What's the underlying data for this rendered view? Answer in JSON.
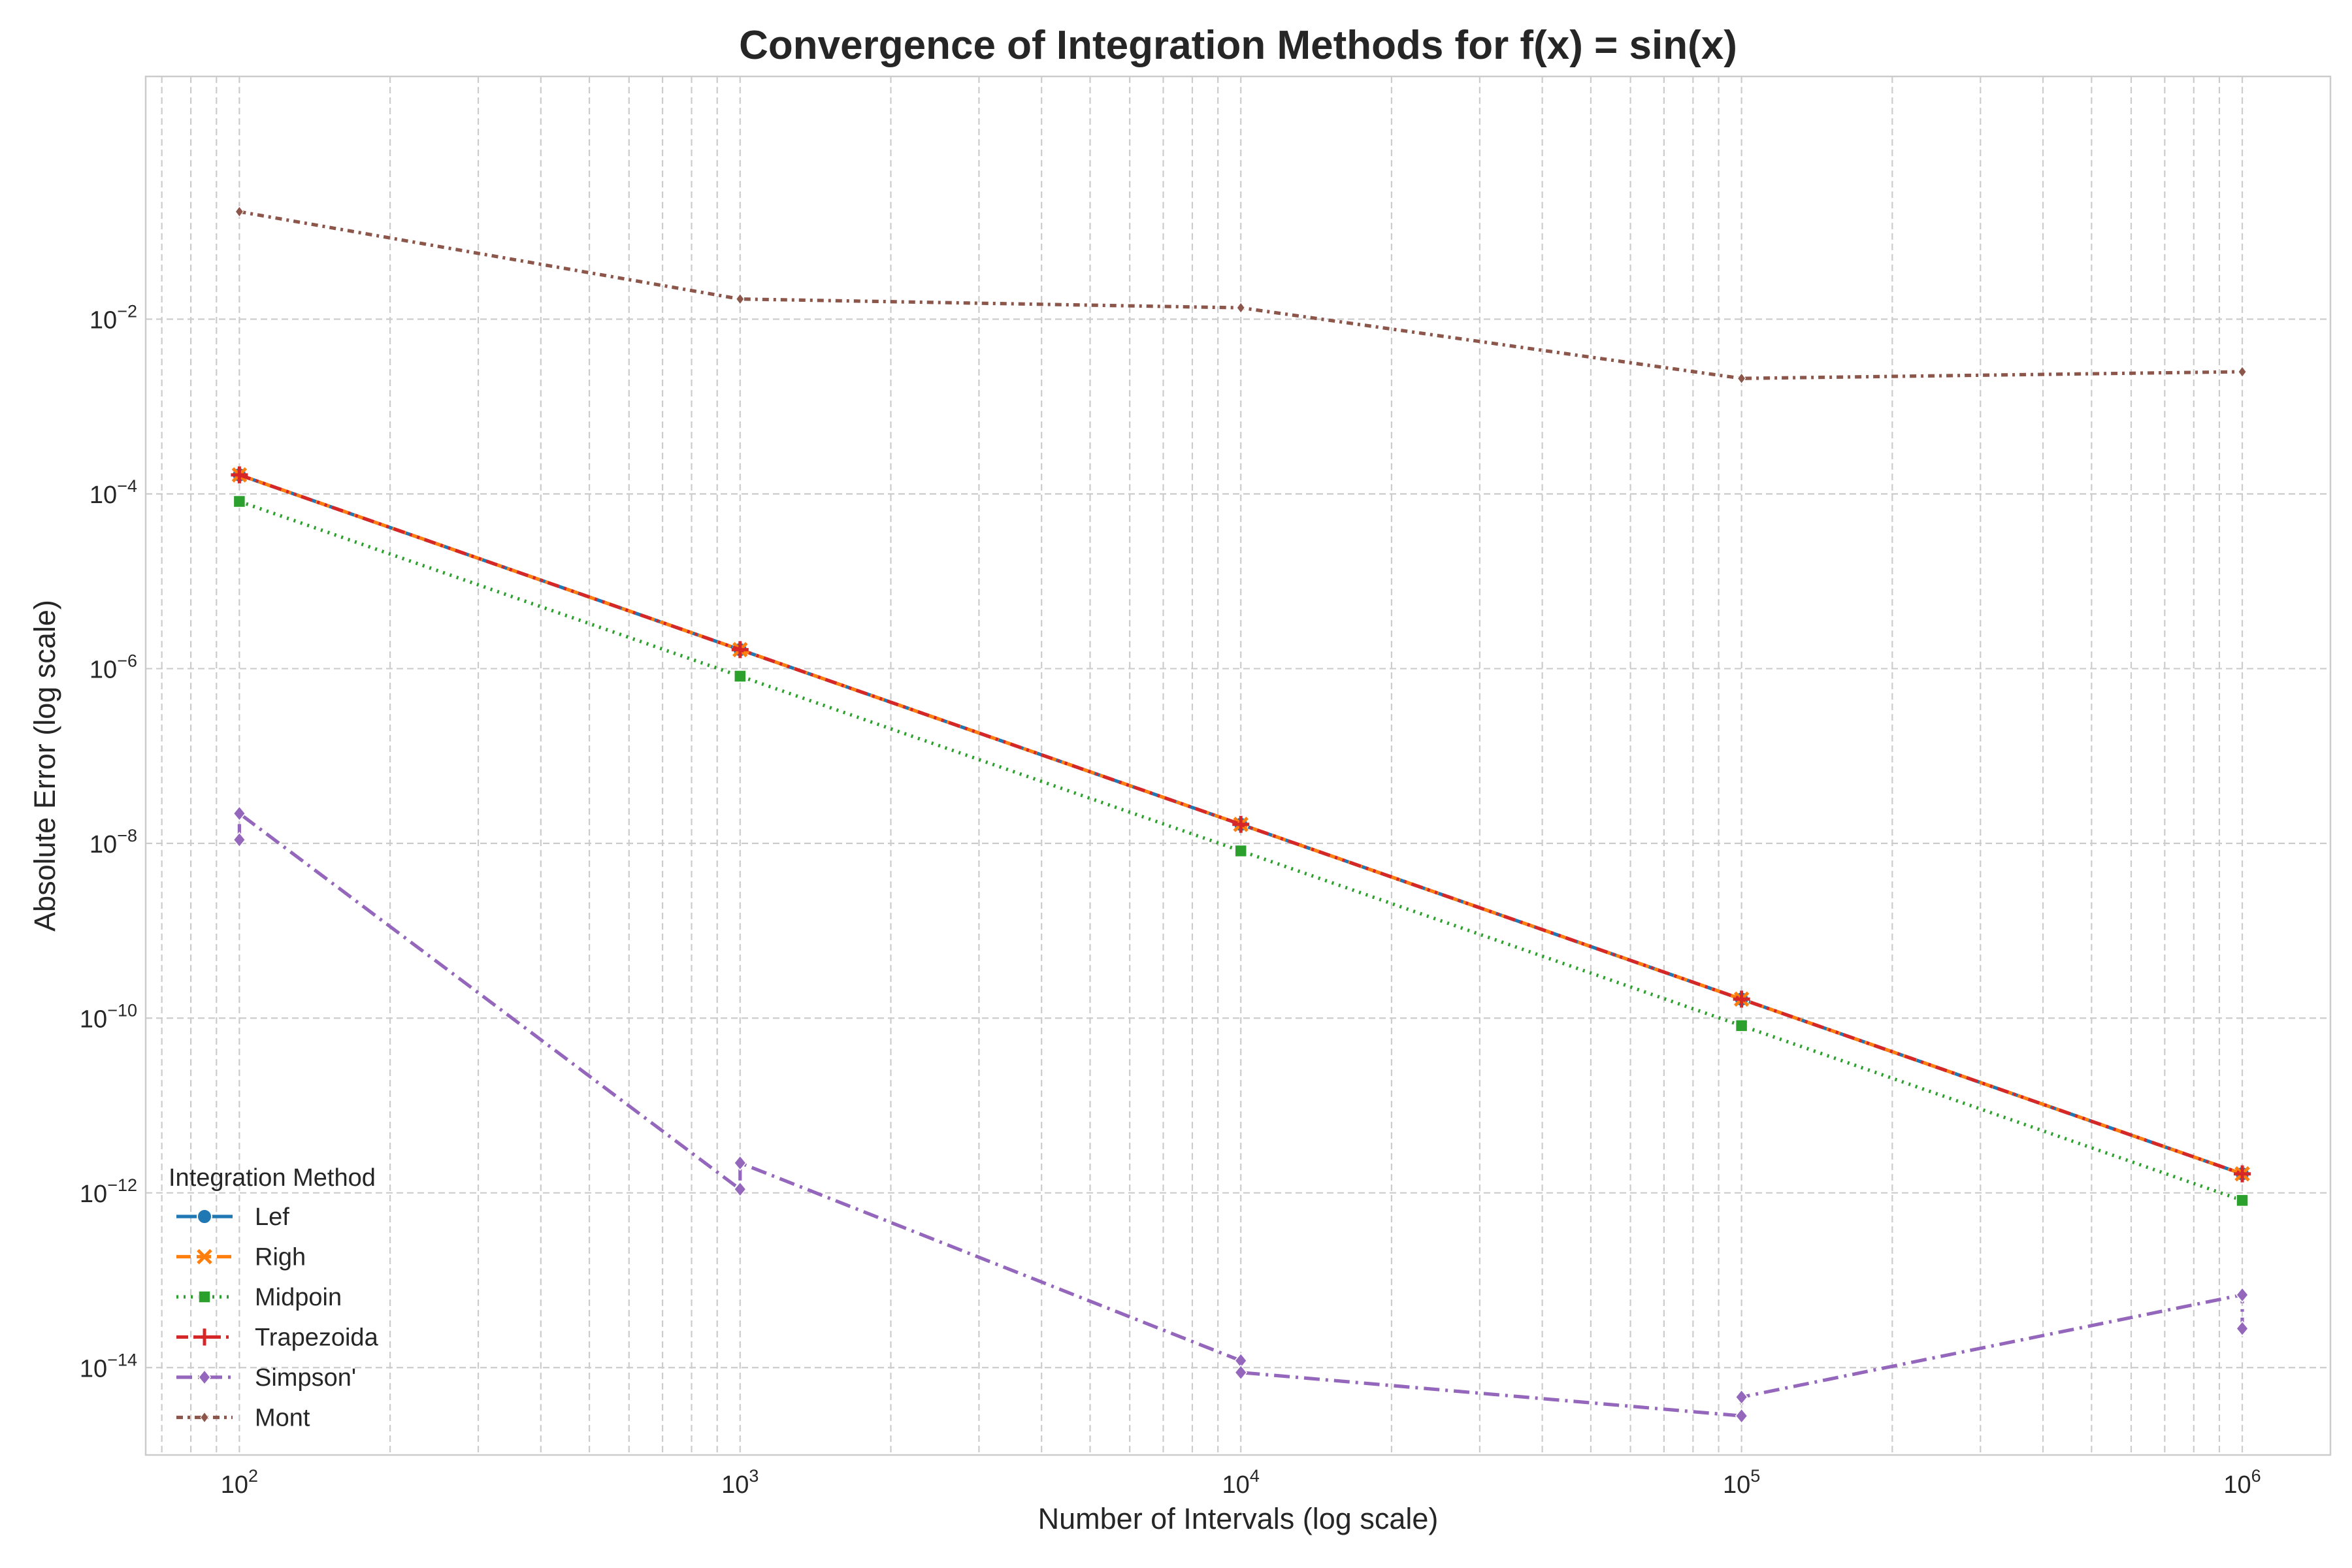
{
  "chart_data": {
    "type": "line",
    "title": "Convergence of Integration Methods for f(x) = sin(x)",
    "xlabel": "Number of Intervals (log scale)",
    "ylabel": "Absolute Error (log scale)",
    "xscale": "log",
    "yscale": "log",
    "xlim": [
      65,
      1500000
    ],
    "ylim": [
      1e-15,
      6
    ],
    "grid": true,
    "x_ticks": [
      {
        "value": 100,
        "base": "10",
        "exp": "2"
      },
      {
        "value": 1000,
        "base": "10",
        "exp": "3"
      },
      {
        "value": 10000,
        "base": "10",
        "exp": "4"
      },
      {
        "value": 100000,
        "base": "10",
        "exp": "5"
      },
      {
        "value": 1000000,
        "base": "10",
        "exp": "6"
      }
    ],
    "y_ticks": [
      {
        "value": 1e-14,
        "base": "10",
        "exp": "−14"
      },
      {
        "value": 1e-12,
        "base": "10",
        "exp": "−12"
      },
      {
        "value": 1e-10,
        "base": "10",
        "exp": "−10"
      },
      {
        "value": 1e-08,
        "base": "10",
        "exp": "−8"
      },
      {
        "value": 1e-06,
        "base": "10",
        "exp": "−6"
      },
      {
        "value": 0.0001,
        "base": "10",
        "exp": "−4"
      },
      {
        "value": 0.01,
        "base": "10",
        "exp": "−2"
      }
    ],
    "legend": {
      "title": "Integration Method",
      "position": "lower-left"
    },
    "series": [
      {
        "name": "Lef",
        "color": "#1f77b4",
        "dash": "solid",
        "marker": "circle",
        "x": [
          100,
          1000,
          10000,
          100000,
          1000000
        ],
        "y": [
          0.000165,
          1.65e-06,
          1.65e-08,
          1.65e-10,
          1.65e-12
        ]
      },
      {
        "name": "Righ",
        "color": "#ff7f0e",
        "dash": "dashed",
        "marker": "x",
        "x": [
          100,
          1000,
          10000,
          100000,
          1000000
        ],
        "y": [
          0.000165,
          1.65e-06,
          1.65e-08,
          1.65e-10,
          1.65e-12
        ]
      },
      {
        "name": "Midpoin",
        "color": "#2ca02c",
        "dash": "dotted",
        "marker": "square",
        "x": [
          100,
          1000,
          10000,
          100000,
          1000000
        ],
        "y": [
          8.2e-05,
          8.2e-07,
          8.2e-09,
          8.2e-11,
          8.2e-13
        ]
      },
      {
        "name": "Trapezoida",
        "color": "#d62728",
        "dash": "dashdotdot",
        "marker": "plus",
        "x": [
          100,
          1000,
          10000,
          100000,
          1000000
        ],
        "y": [
          0.000165,
          1.65e-06,
          1.65e-08,
          1.65e-10,
          1.65e-12
        ]
      },
      {
        "name": "Simpson'",
        "color": "#9467bd",
        "dash": "dashdot",
        "marker": "diamond",
        "x": [
          100,
          100,
          1000,
          1000,
          10000,
          10000,
          100000,
          100000,
          1000000,
          1000000
        ],
        "y": [
          1.1e-08,
          2.2e-08,
          1.1e-12,
          2.2e-12,
          1.2e-14,
          8.8e-15,
          2.8e-15,
          4.6e-15,
          6.8e-14,
          2.8e-14
        ]
      },
      {
        "name": "Mont",
        "color": "#8c564b",
        "dash": "densedashdot",
        "marker": "smalldiamond",
        "x": [
          100,
          1000,
          10000,
          100000,
          1000000
        ],
        "y": [
          0.17,
          0.017,
          0.0135,
          0.0021,
          0.0025
        ]
      }
    ]
  }
}
